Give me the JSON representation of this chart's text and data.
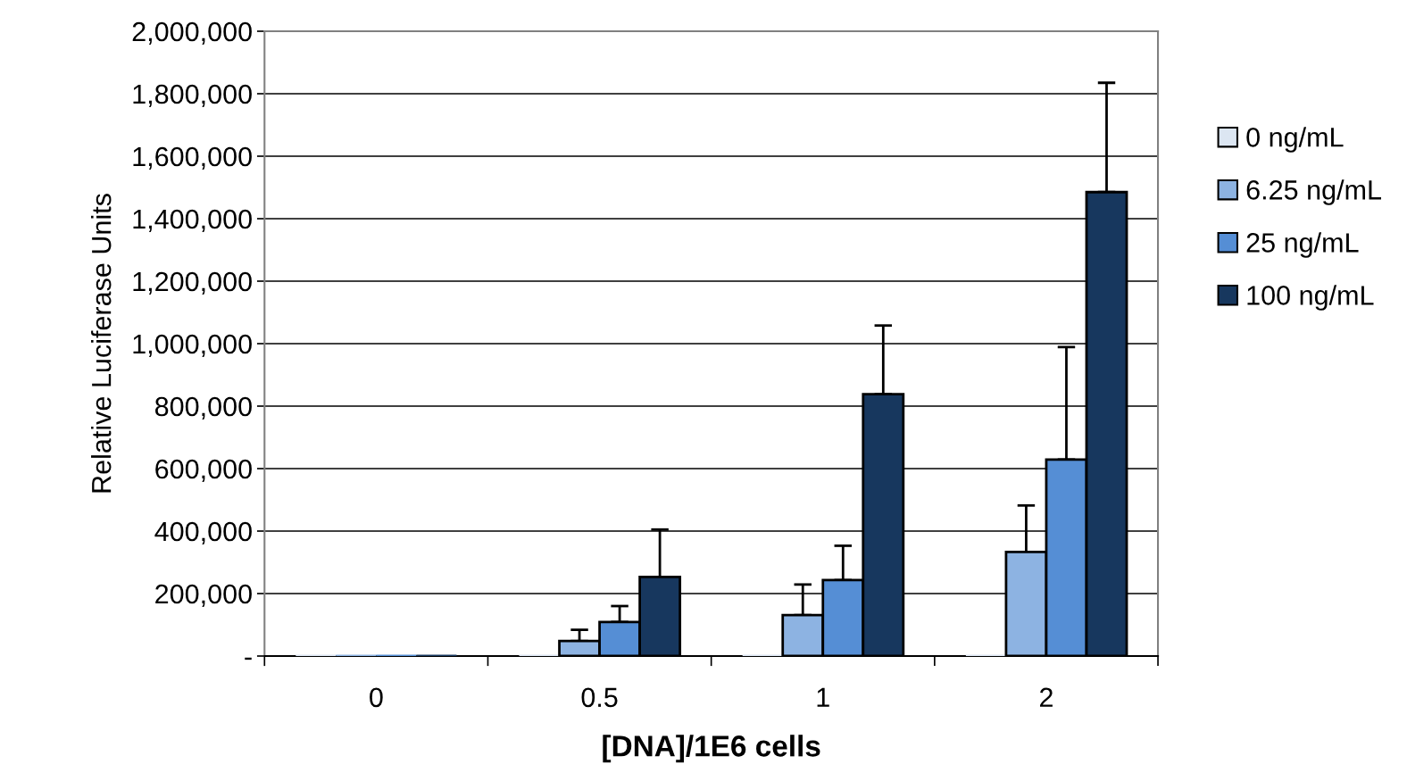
{
  "chart_data": {
    "type": "bar",
    "xlabel": "[DNA]/1E6 cells",
    "ylabel": "Relative Luciferase Units",
    "categories": [
      "0",
      "0.5",
      "1",
      "2"
    ],
    "series": [
      {
        "name": "0 ng/mL",
        "color": "#dce6f2",
        "values": [
          0,
          0,
          0,
          0
        ],
        "errors": [
          null,
          null,
          null,
          null
        ]
      },
      {
        "name": "6.25 ng/mL",
        "color": "#8db3e2",
        "values": [
          0,
          48000,
          131000,
          333000
        ],
        "errors": [
          null,
          [
            48000,
            84000
          ],
          [
            131000,
            229000
          ],
          [
            333000,
            482000
          ]
        ]
      },
      {
        "name": "25 ng/mL",
        "color": "#558ed5",
        "values": [
          0,
          109000,
          243000,
          629000
        ],
        "errors": [
          null,
          [
            109000,
            160000
          ],
          [
            243000,
            353000
          ],
          [
            629000,
            989000
          ]
        ]
      },
      {
        "name": "100 ng/mL",
        "color": "#17375e",
        "values": [
          0,
          253000,
          838000,
          1485000
        ],
        "errors": [
          null,
          [
            253000,
            405000
          ],
          [
            838000,
            1058000
          ],
          [
            1485000,
            1835000
          ]
        ]
      }
    ],
    "ylim": [
      0,
      2000000
    ],
    "yticks": [
      {
        "value": 0,
        "label": "-"
      },
      {
        "value": 200000,
        "label": "200,000"
      },
      {
        "value": 400000,
        "label": "400,000"
      },
      {
        "value": 600000,
        "label": "600,000"
      },
      {
        "value": 800000,
        "label": "800,000"
      },
      {
        "value": 1000000,
        "label": "1,000,000"
      },
      {
        "value": 1200000,
        "label": "1,200,000"
      },
      {
        "value": 1400000,
        "label": "1,400,000"
      },
      {
        "value": 1600000,
        "label": "1,600,000"
      },
      {
        "value": 1800000,
        "label": "1,800,000"
      },
      {
        "value": 2000000,
        "label": "2,000,000"
      }
    ],
    "grid": "y",
    "legend": "right"
  }
}
